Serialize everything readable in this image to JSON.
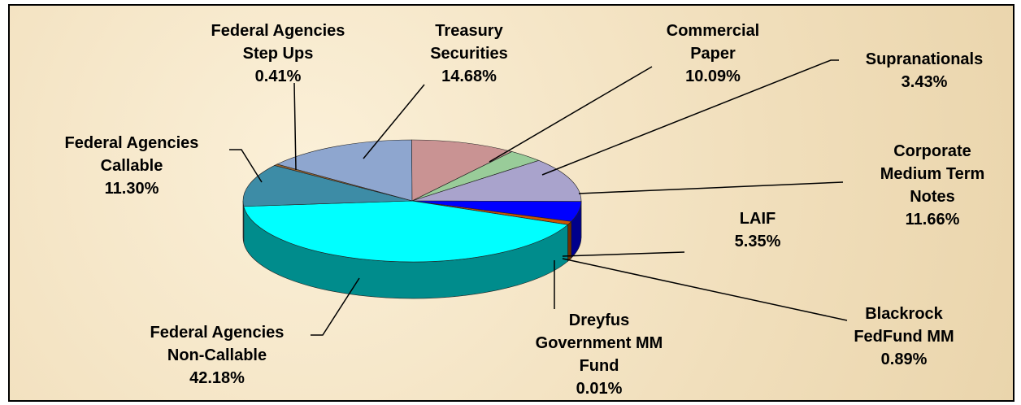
{
  "chart_data": {
    "type": "pie",
    "categories": [
      "Treasury Securities",
      "Commercial Paper",
      "Supranationals",
      "Corporate Medium Term Notes",
      "LAIF",
      "Blackrock FedFund MM",
      "Dreyfus Government MM Fund",
      "Federal Agencies Non-Callable",
      "Federal Agencies Callable",
      "Federal Agencies Step Ups"
    ],
    "values": [
      14.68,
      10.09,
      3.43,
      11.66,
      5.35,
      0.89,
      0.01,
      42.18,
      11.3,
      0.41
    ],
    "value_labels": [
      "14.68%",
      "10.09%",
      "3.43%",
      "11.66%",
      "5.35%",
      "0.89%",
      "0.01%",
      "42.18%",
      "11.30%",
      "0.41%"
    ],
    "colors": [
      "#8ea6cf",
      "#c99393",
      "#99cc99",
      "#a9a3cc",
      "#0000ff",
      "#cc5500",
      "#cc9933",
      "#00ffff",
      "#3d8ca6",
      "#996633"
    ]
  }
}
